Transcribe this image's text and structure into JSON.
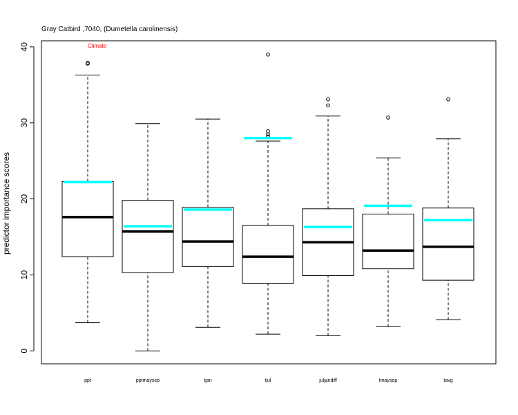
{
  "chart_data": {
    "type": "boxplot",
    "title": "Gray Catbird ,7040, (Dumetella carolinensis)",
    "annotation": "Climate",
    "ylabel": "predictor importance scores",
    "xlabel": "",
    "ylim": [
      -1.7,
      40.8
    ],
    "yticks": [
      0,
      10,
      20,
      30,
      40
    ],
    "grid": false,
    "categories": [
      "ppt",
      "pptmaysep",
      "tjan",
      "tjul",
      "juljandiff",
      "tmaysep",
      "tavg"
    ],
    "boxes": [
      {
        "category": "ppt",
        "whisker_low": 3.7,
        "q1": 12.4,
        "median": 17.6,
        "q3": 22.3,
        "whisker_high": 36.3,
        "outliers": [
          37.8,
          37.9
        ]
      },
      {
        "category": "pptmaysep",
        "whisker_low": 0.0,
        "q1": 10.3,
        "median": 15.7,
        "q3": 19.8,
        "whisker_high": 29.9,
        "outliers": []
      },
      {
        "category": "tjan",
        "whisker_low": 3.1,
        "q1": 11.1,
        "median": 14.4,
        "q3": 18.9,
        "whisker_high": 30.5,
        "outliers": []
      },
      {
        "category": "tjul",
        "whisker_low": 2.2,
        "q1": 8.9,
        "median": 12.4,
        "q3": 16.5,
        "whisker_high": 27.6,
        "outliers": [
          28.2,
          28.5,
          28.9,
          39.0
        ]
      },
      {
        "category": "juljandiff",
        "whisker_low": 2.0,
        "q1": 9.9,
        "median": 14.3,
        "q3": 18.7,
        "whisker_high": 30.9,
        "outliers": [
          32.3,
          33.1
        ]
      },
      {
        "category": "tmaysep",
        "whisker_low": 3.2,
        "q1": 10.8,
        "median": 13.2,
        "q3": 18.0,
        "whisker_high": 25.4,
        "outliers": [
          30.7
        ]
      },
      {
        "category": "tavg",
        "whisker_low": 4.1,
        "q1": 9.3,
        "median": 13.7,
        "q3": 18.8,
        "whisker_high": 27.9,
        "outliers": [
          33.1
        ]
      }
    ],
    "reference_values": [
      22.2,
      16.4,
      18.6,
      28.0,
      16.3,
      19.1,
      17.2
    ],
    "colors": {
      "box": "#000000",
      "reference": "#00ffff",
      "annotation": "#ff0000"
    }
  }
}
